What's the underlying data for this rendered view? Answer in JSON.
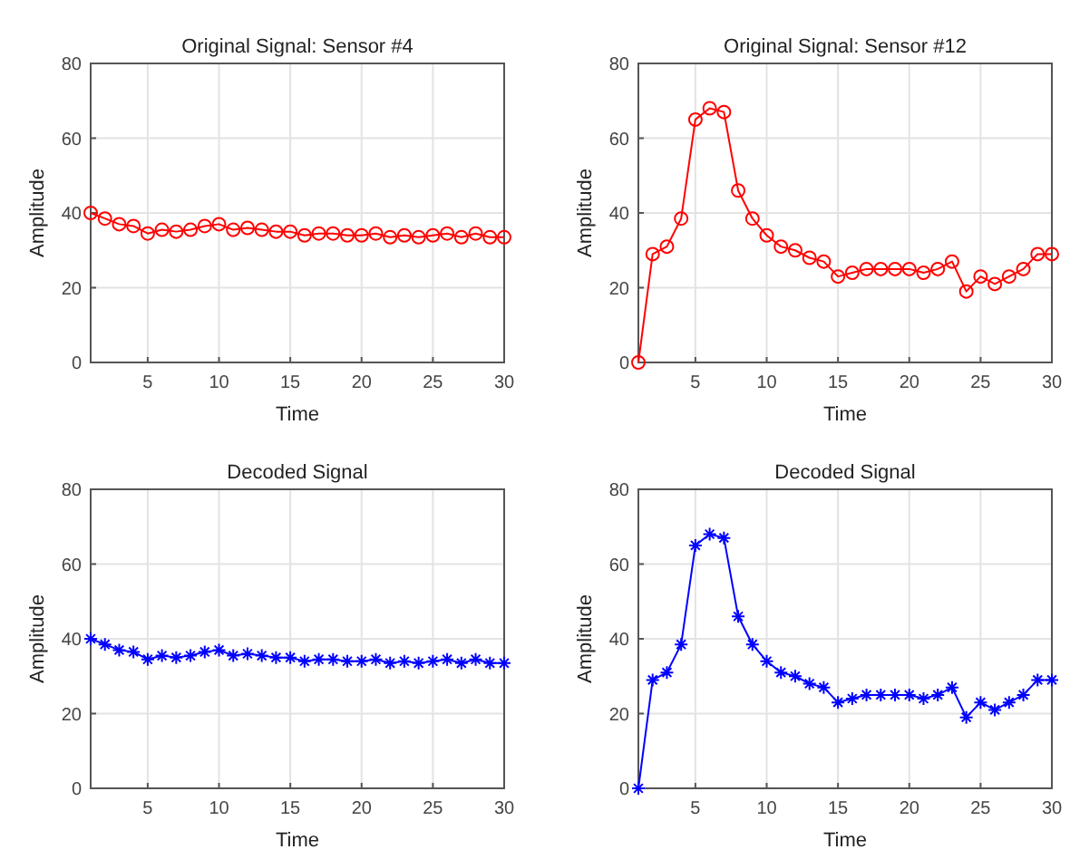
{
  "chart_data": [
    {
      "type": "line",
      "title": "Original Signal: Sensor #4",
      "xlabel": "Time",
      "ylabel": "Amplitude",
      "x": [
        1,
        2,
        3,
        4,
        5,
        6,
        7,
        8,
        9,
        10,
        11,
        12,
        13,
        14,
        15,
        16,
        17,
        18,
        19,
        20,
        21,
        22,
        23,
        24,
        25,
        26,
        27,
        28,
        29,
        30
      ],
      "series": [
        {
          "color": "#ff0000",
          "values": [
            40,
            38.5,
            37,
            36.5,
            34.5,
            35.5,
            35,
            35.5,
            36.5,
            37,
            35.5,
            36,
            35.5,
            35,
            35,
            34,
            34.5,
            34.5,
            34,
            34,
            34.5,
            33.5,
            34,
            33.5,
            34,
            34.5,
            33.5,
            34.5,
            33.5,
            33.5
          ]
        }
      ],
      "xlim": [
        1,
        30
      ],
      "ylim": [
        0,
        80
      ],
      "xticks": [
        5,
        10,
        15,
        20,
        25,
        30
      ],
      "yticks": [
        0,
        20,
        40,
        60,
        80
      ],
      "grid": true,
      "marker": "circle"
    },
    {
      "type": "line",
      "title": "Original Signal: Sensor #12",
      "xlabel": "Time",
      "ylabel": "Amplitude",
      "x": [
        1,
        2,
        3,
        4,
        5,
        6,
        7,
        8,
        9,
        10,
        11,
        12,
        13,
        14,
        15,
        16,
        17,
        18,
        19,
        20,
        21,
        22,
        23,
        24,
        25,
        26,
        27,
        28,
        29,
        30
      ],
      "series": [
        {
          "color": "#ff0000",
          "values": [
            0,
            29,
            31,
            38.5,
            65,
            68,
            67,
            46,
            38.5,
            34,
            31,
            30,
            28,
            27,
            23,
            24,
            25,
            25,
            25,
            25,
            24,
            25,
            27,
            19,
            23,
            21,
            23,
            25,
            29,
            29
          ]
        }
      ],
      "xlim": [
        1,
        30
      ],
      "ylim": [
        0,
        80
      ],
      "xticks": [
        5,
        10,
        15,
        20,
        25,
        30
      ],
      "yticks": [
        0,
        20,
        40,
        60,
        80
      ],
      "grid": true,
      "marker": "circle"
    },
    {
      "type": "line",
      "title": "Decoded Signal",
      "xlabel": "Time",
      "ylabel": "Amplitude",
      "x": [
        1,
        2,
        3,
        4,
        5,
        6,
        7,
        8,
        9,
        10,
        11,
        12,
        13,
        14,
        15,
        16,
        17,
        18,
        19,
        20,
        21,
        22,
        23,
        24,
        25,
        26,
        27,
        28,
        29,
        30
      ],
      "series": [
        {
          "color": "#0000ff",
          "values": [
            40,
            38.5,
            37,
            36.5,
            34.5,
            35.5,
            35,
            35.5,
            36.5,
            37,
            35.5,
            36,
            35.5,
            35,
            35,
            34,
            34.5,
            34.5,
            34,
            34,
            34.5,
            33.5,
            34,
            33.5,
            34,
            34.5,
            33.5,
            34.5,
            33.5,
            33.5
          ]
        }
      ],
      "xlim": [
        1,
        30
      ],
      "ylim": [
        0,
        80
      ],
      "xticks": [
        5,
        10,
        15,
        20,
        25,
        30
      ],
      "yticks": [
        0,
        20,
        40,
        60,
        80
      ],
      "grid": true,
      "marker": "cross"
    },
    {
      "type": "line",
      "title": "Decoded Signal",
      "xlabel": "Time",
      "ylabel": "Amplitude",
      "x": [
        1,
        2,
        3,
        4,
        5,
        6,
        7,
        8,
        9,
        10,
        11,
        12,
        13,
        14,
        15,
        16,
        17,
        18,
        19,
        20,
        21,
        22,
        23,
        24,
        25,
        26,
        27,
        28,
        29,
        30
      ],
      "series": [
        {
          "color": "#0000ff",
          "values": [
            0,
            29,
            31,
            38.5,
            65,
            68,
            67,
            46,
            38.5,
            34,
            31,
            30,
            28,
            27,
            23,
            24,
            25,
            25,
            25,
            25,
            24,
            25,
            27,
            19,
            23,
            21,
            23,
            25,
            29,
            29
          ]
        }
      ],
      "xlim": [
        1,
        30
      ],
      "ylim": [
        0,
        80
      ],
      "xticks": [
        5,
        10,
        15,
        20,
        25,
        30
      ],
      "yticks": [
        0,
        20,
        40,
        60,
        80
      ],
      "grid": true,
      "marker": "cross"
    }
  ]
}
